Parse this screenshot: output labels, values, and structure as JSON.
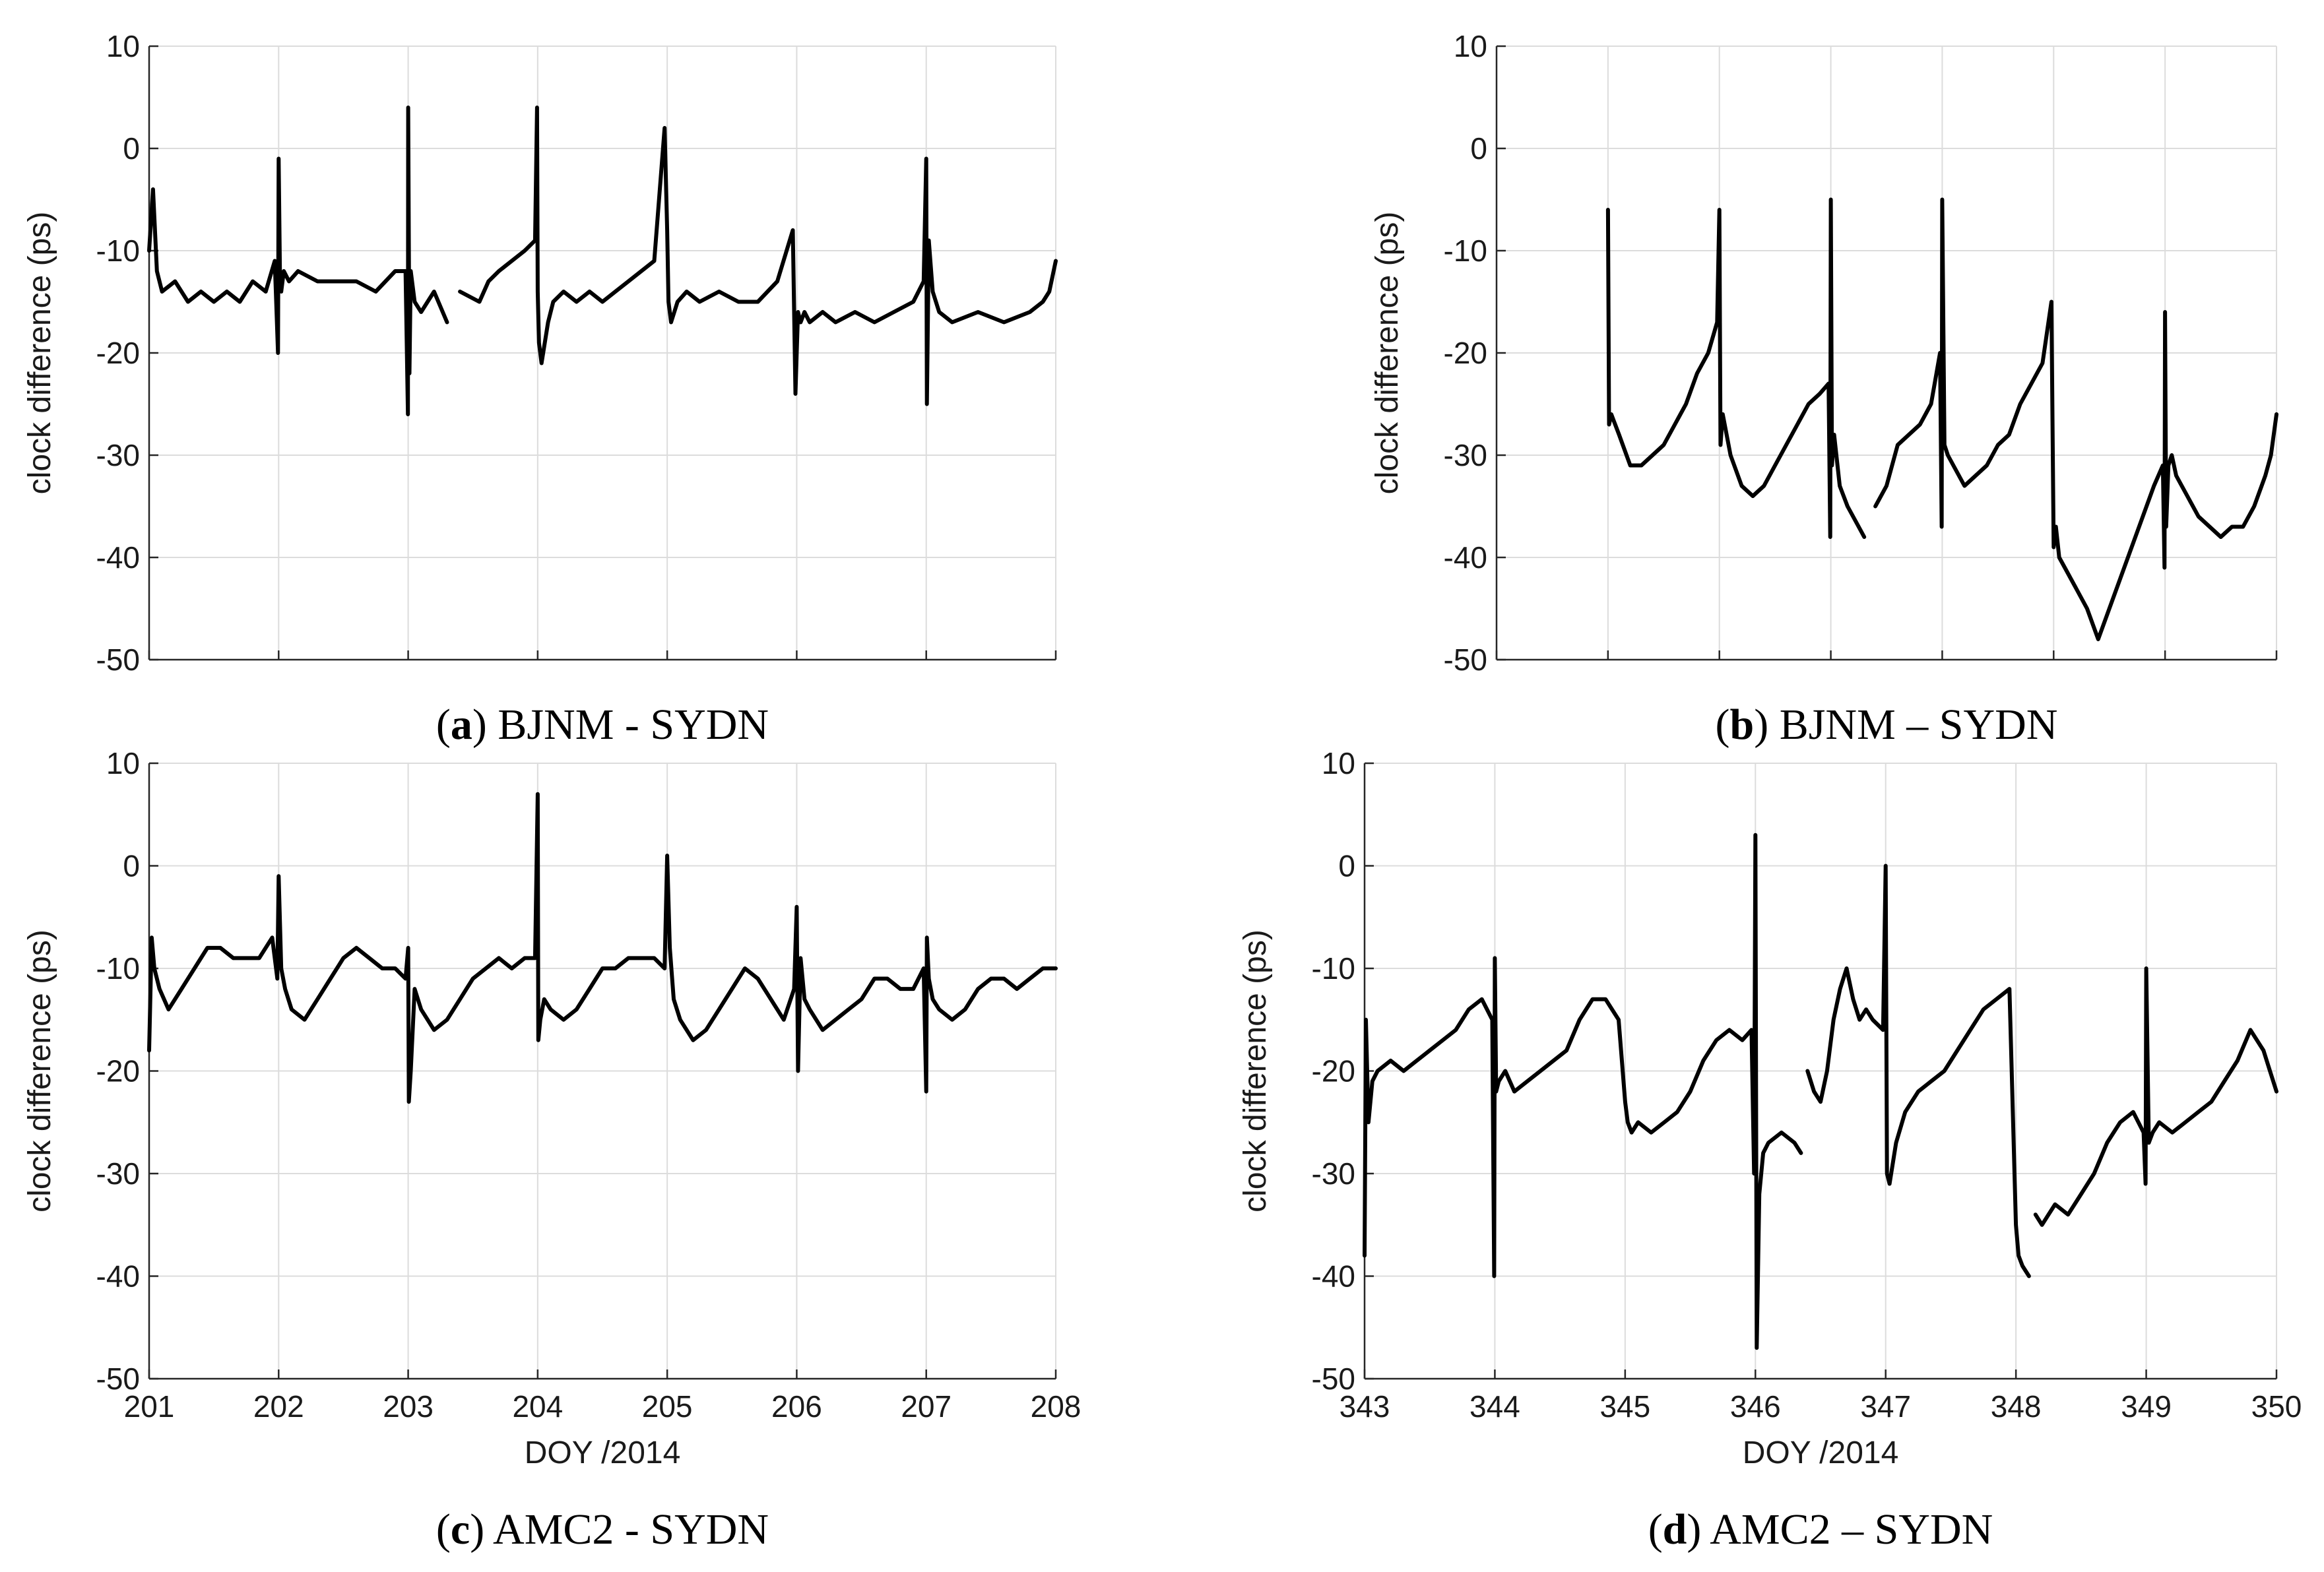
{
  "chart_data": [
    {
      "id": "a",
      "type": "line",
      "caption_letter": "a",
      "caption_text": "BJNM - SYDN",
      "ylabel": "clock difference (ps)",
      "xlabel": "",
      "xlim": [
        201,
        208
      ],
      "ylim": [
        -50,
        10
      ],
      "xticks": [
        201,
        202,
        203,
        204,
        205,
        206,
        207,
        208
      ],
      "xtick_labels": [],
      "yticks": [
        10,
        0,
        -10,
        -20,
        -30,
        -40,
        -50
      ],
      "ytick_labels": [
        "10",
        "0",
        "-10",
        "-20",
        "-30",
        "-40",
        "-50"
      ],
      "grid": true,
      "series": [
        {
          "name": "clock difference",
          "x": [
            201.0,
            201.03,
            201.06,
            201.1,
            201.2,
            201.3,
            201.4,
            201.5,
            201.6,
            201.7,
            201.8,
            201.9,
            201.97,
            201.995,
            202.0,
            202.01,
            202.02,
            202.04,
            202.08,
            202.15,
            202.3,
            202.45,
            202.6,
            202.75,
            202.9,
            202.98,
            202.998,
            203.0,
            203.01,
            203.02,
            203.05,
            203.1,
            203.2,
            203.3,
            203.32,
            203.4,
            203.55,
            203.62,
            203.7,
            203.8,
            203.9,
            203.98,
            203.995,
            204.0,
            204.01,
            204.03,
            204.08,
            204.12,
            204.2,
            204.3,
            204.4,
            204.5,
            204.6,
            204.7,
            204.8,
            204.9,
            204.98,
            205.0,
            205.01,
            205.03,
            205.08,
            205.15,
            205.25,
            205.4,
            205.55,
            205.7,
            205.85,
            205.97,
            205.99,
            206.0,
            206.01,
            206.03,
            206.06,
            206.1,
            206.2,
            206.3,
            206.45,
            206.6,
            206.75,
            206.9,
            206.98,
            207.0,
            207.005,
            207.02,
            207.05,
            207.1,
            207.2,
            207.4,
            207.6,
            207.8,
            207.9,
            207.95,
            208.0
          ],
          "y": [
            -10,
            -4,
            -12,
            -14,
            -13,
            -15,
            -14,
            -15,
            -14,
            -15,
            -13,
            -14,
            -11,
            -20,
            -1,
            -12,
            -14,
            -12,
            -13,
            -12,
            -13,
            -13,
            -13,
            -14,
            -12,
            -12,
            -26,
            4,
            -22,
            -12,
            -15,
            -16,
            -14,
            -17,
            null,
            -14,
            -15,
            -13,
            -12,
            -11,
            -10,
            -9,
            4,
            -14,
            -19,
            -21,
            -17,
            -15,
            -14,
            -15,
            -14,
            -15,
            -14,
            -13,
            -12,
            -11,
            2,
            -8,
            -15,
            -17,
            -15,
            -14,
            -15,
            -14,
            -15,
            -15,
            -13,
            -8,
            -24,
            -20,
            -16,
            -17,
            -16,
            -17,
            -16,
            -17,
            -16,
            -17,
            -16,
            -15,
            -13,
            -1,
            -25,
            -9,
            -14,
            -16,
            -17,
            -16,
            -17,
            -16,
            -15,
            -14,
            -11
          ]
        }
      ]
    },
    {
      "id": "b",
      "type": "line",
      "caption_letter": "b",
      "caption_text": "BJNM – SYDN",
      "ylabel": "clock difference (ps)",
      "xlabel": "",
      "xlim": [
        343,
        350
      ],
      "ylim": [
        -50,
        10
      ],
      "xticks": [
        343,
        344,
        345,
        346,
        347,
        348,
        349,
        350
      ],
      "xtick_labels": [],
      "yticks": [
        10,
        0,
        -10,
        -20,
        -30,
        -40,
        -50
      ],
      "ytick_labels": [
        "10",
        "0",
        "-10",
        "-20",
        "-30",
        "-40",
        "-50"
      ],
      "grid": true,
      "series": [
        {
          "name": "clock difference",
          "x": [
            344.0,
            344.01,
            344.03,
            344.1,
            344.2,
            344.3,
            344.4,
            344.5,
            344.6,
            344.7,
            344.8,
            344.9,
            344.98,
            345.0,
            345.01,
            345.03,
            345.1,
            345.2,
            345.3,
            345.4,
            345.5,
            345.6,
            345.7,
            345.8,
            345.9,
            345.98,
            345.995,
            346.0,
            346.01,
            346.03,
            346.08,
            346.15,
            346.25,
            346.3,
            346.32,
            346.4,
            346.5,
            346.6,
            346.7,
            346.8,
            346.9,
            346.98,
            346.995,
            347.0,
            347.02,
            347.05,
            347.1,
            347.2,
            347.3,
            347.4,
            347.5,
            347.6,
            347.7,
            347.8,
            347.9,
            347.98,
            348.0,
            348.02,
            348.05,
            348.1,
            348.2,
            348.3,
            348.4,
            348.5,
            348.6,
            348.7,
            348.8,
            348.9,
            348.98,
            348.995,
            349.0,
            349.01,
            349.03,
            349.06,
            349.1,
            349.2,
            349.3,
            349.4,
            349.5,
            349.6,
            349.7,
            349.8,
            349.9,
            349.95,
            350.0
          ],
          "y": [
            -6,
            -27,
            -26,
            -28,
            -31,
            -31,
            -30,
            -29,
            -27,
            -25,
            -22,
            -20,
            -17,
            -6,
            -29,
            -26,
            -30,
            -33,
            -34,
            -33,
            -31,
            -29,
            -27,
            -25,
            -24,
            -23,
            -38,
            -5,
            -31,
            -28,
            -33,
            -35,
            -37,
            -38,
            null,
            -35,
            -33,
            -29,
            -28,
            -27,
            -25,
            -20,
            -37,
            -5,
            -29,
            -30,
            -31,
            -33,
            -32,
            -31,
            -29,
            -28,
            -25,
            -23,
            -21,
            -15,
            -39,
            -37,
            -40,
            -41,
            -43,
            -45,
            -48,
            -45,
            -42,
            -39,
            -36,
            -33,
            -31,
            -41,
            -16,
            -37,
            -31,
            -30,
            -32,
            -34,
            -36,
            -37,
            -38,
            -37,
            -37,
            -35,
            -32,
            -30,
            -26
          ]
        }
      ]
    },
    {
      "id": "c",
      "type": "line",
      "caption_letter": "c",
      "caption_text": "AMC2 - SYDN",
      "ylabel": "clock difference (ps)",
      "xlabel": "DOY /2014",
      "xlim": [
        201,
        208
      ],
      "ylim": [
        -50,
        10
      ],
      "xticks": [
        201,
        202,
        203,
        204,
        205,
        206,
        207,
        208
      ],
      "xtick_labels": [
        "201",
        "202",
        "203",
        "204",
        "205",
        "206",
        "207",
        "208"
      ],
      "yticks": [
        10,
        0,
        -10,
        -20,
        -30,
        -40,
        -50
      ],
      "ytick_labels": [
        "10",
        "0",
        "-10",
        "-20",
        "-30",
        "-40",
        "-50"
      ],
      "grid": true,
      "series": [
        {
          "name": "clock difference",
          "x": [
            201.0,
            201.02,
            201.04,
            201.08,
            201.15,
            201.25,
            201.35,
            201.45,
            201.55,
            201.65,
            201.75,
            201.85,
            201.95,
            201.99,
            202.0,
            202.02,
            202.05,
            202.1,
            202.2,
            202.3,
            202.4,
            202.5,
            202.6,
            202.7,
            202.8,
            202.9,
            202.98,
            203.0,
            203.005,
            203.02,
            203.05,
            203.1,
            203.2,
            203.3,
            203.4,
            203.5,
            203.6,
            203.7,
            203.8,
            203.9,
            203.98,
            204.0,
            204.005,
            204.02,
            204.05,
            204.1,
            204.2,
            204.3,
            204.4,
            204.5,
            204.6,
            204.7,
            204.8,
            204.9,
            204.98,
            205.0,
            205.02,
            205.05,
            205.1,
            205.2,
            205.3,
            205.4,
            205.5,
            205.6,
            205.7,
            205.8,
            205.9,
            205.98,
            206.0,
            206.01,
            206.03,
            206.06,
            206.1,
            206.2,
            206.3,
            206.4,
            206.5,
            206.6,
            206.7,
            206.8,
            206.9,
            206.98,
            207.0,
            207.005,
            207.02,
            207.05,
            207.1,
            207.2,
            207.3,
            207.4,
            207.5,
            207.6,
            207.7,
            207.8,
            207.9,
            208.0
          ],
          "y": [
            -18,
            -7,
            -10,
            -12,
            -14,
            -12,
            -10,
            -8,
            -8,
            -9,
            -9,
            -9,
            -7,
            -11,
            -1,
            -10,
            -12,
            -14,
            -15,
            -13,
            -11,
            -9,
            -8,
            -9,
            -10,
            -10,
            -11,
            -8,
            -23,
            -20,
            -12,
            -14,
            -16,
            -15,
            -13,
            -11,
            -10,
            -9,
            -10,
            -9,
            -9,
            7,
            -17,
            -15,
            -13,
            -14,
            -15,
            -14,
            -12,
            -10,
            -10,
            -9,
            -9,
            -9,
            -10,
            1,
            -8,
            -13,
            -15,
            -17,
            -16,
            -14,
            -12,
            -10,
            -11,
            -13,
            -15,
            -12,
            -4,
            -20,
            -9,
            -13,
            -14,
            -16,
            -15,
            -14,
            -13,
            -11,
            -11,
            -12,
            -12,
            -10,
            -22,
            -7,
            -11,
            -13,
            -14,
            -15,
            -14,
            -12,
            -11,
            -11,
            -12,
            -11,
            -10,
            -10
          ]
        }
      ]
    },
    {
      "id": "d",
      "type": "line",
      "caption_letter": "d",
      "caption_text": "AMC2 – SYDN",
      "ylabel": "clock difference (ps)",
      "xlabel": "DOY /2014",
      "xlim": [
        343,
        350
      ],
      "ylim": [
        -50,
        10
      ],
      "xticks": [
        343,
        344,
        345,
        346,
        347,
        348,
        349,
        350
      ],
      "xtick_labels": [
        "343",
        "344",
        "345",
        "346",
        "347",
        "348",
        "349",
        "350"
      ],
      "yticks": [
        10,
        0,
        -10,
        -20,
        -30,
        -40,
        -50
      ],
      "ytick_labels": [
        "10",
        "0",
        "-10",
        "-20",
        "-30",
        "-40",
        "-50"
      ],
      "grid": true,
      "series": [
        {
          "name": "clock difference",
          "x": [
            343.0,
            343.01,
            343.03,
            343.06,
            343.1,
            343.2,
            343.3,
            343.4,
            343.5,
            343.6,
            343.7,
            343.8,
            343.9,
            343.98,
            343.995,
            344.0,
            344.01,
            344.03,
            344.08,
            344.15,
            344.25,
            344.35,
            344.45,
            344.55,
            344.65,
            344.75,
            344.85,
            344.95,
            345.0,
            345.02,
            345.05,
            345.1,
            345.2,
            345.3,
            345.4,
            345.5,
            345.6,
            345.7,
            345.8,
            345.9,
            345.97,
            345.99,
            346.0,
            346.01,
            346.03,
            346.06,
            346.1,
            346.2,
            346.3,
            346.35,
            346.38,
            346.4,
            346.45,
            346.5,
            346.55,
            346.6,
            346.65,
            346.7,
            346.75,
            346.8,
            346.85,
            346.9,
            346.98,
            347.0,
            347.01,
            347.03,
            347.08,
            347.15,
            347.25,
            347.35,
            347.45,
            347.55,
            347.65,
            347.75,
            347.85,
            347.95,
            348.0,
            348.02,
            348.05,
            348.1,
            348.12,
            348.15,
            348.2,
            348.25,
            348.3,
            348.4,
            348.5,
            348.6,
            348.7,
            348.8,
            348.9,
            348.98,
            348.995,
            349.0,
            349.02,
            349.05,
            349.1,
            349.2,
            349.3,
            349.4,
            349.5,
            349.6,
            349.7,
            349.8,
            349.9,
            349.95,
            350.0
          ],
          "y": [
            -38,
            -15,
            -25,
            -21,
            -20,
            -19,
            -20,
            -19,
            -18,
            -17,
            -16,
            -14,
            -13,
            -15,
            -40,
            -9,
            -22,
            -21,
            -20,
            -22,
            -21,
            -20,
            -19,
            -18,
            -15,
            -13,
            -13,
            -15,
            -23,
            -25,
            -26,
            -25,
            -26,
            -25,
            -24,
            -22,
            -19,
            -17,
            -16,
            -17,
            -16,
            -30,
            3,
            -47,
            -32,
            -28,
            -27,
            -26,
            -27,
            -28,
            null,
            -20,
            -22,
            -23,
            -20,
            -15,
            -12,
            -10,
            -13,
            -15,
            -14,
            -15,
            -16,
            0,
            -30,
            -31,
            -27,
            -24,
            -22,
            -21,
            -20,
            -18,
            -16,
            -14,
            -13,
            -12,
            -35,
            -38,
            -39,
            -40,
            null,
            -34,
            -35,
            -34,
            -33,
            -34,
            -32,
            -30,
            -27,
            -25,
            -24,
            -26,
            -31,
            -10,
            -27,
            -26,
            -25,
            -26,
            -25,
            -24,
            -23,
            -21,
            -19,
            -16,
            -18,
            -20,
            -22
          ]
        }
      ]
    }
  ]
}
